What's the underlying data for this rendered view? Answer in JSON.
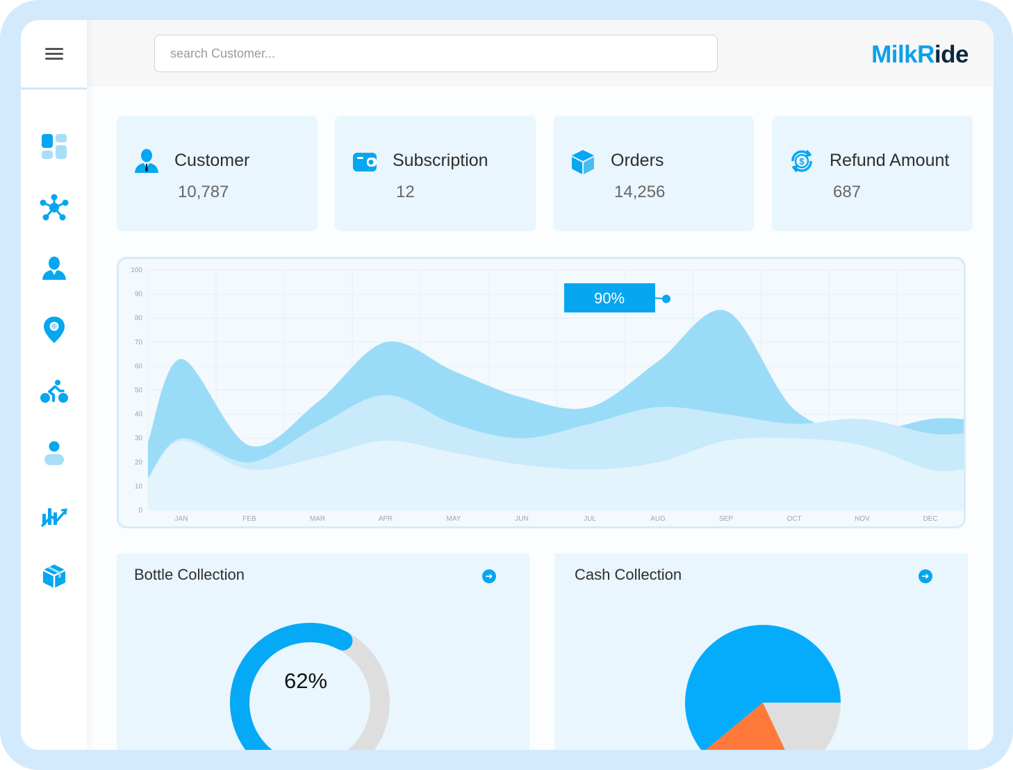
{
  "search": {
    "placeholder": "search Customer..."
  },
  "brand": {
    "part1": "MilkR",
    "part2": "ide",
    "color_primary": "#0aa0ec",
    "color_dark": "#0d2740"
  },
  "sidebar": {
    "items": [
      {
        "icon": "dashboard-icon"
      },
      {
        "icon": "network-icon"
      },
      {
        "icon": "user-icon"
      },
      {
        "icon": "location-pin-icon"
      },
      {
        "icon": "delivery-bike-icon"
      },
      {
        "icon": "person-icon"
      },
      {
        "icon": "analytics-icon"
      },
      {
        "icon": "package-icon"
      }
    ]
  },
  "stats": [
    {
      "label": "Customer",
      "value": "10,787",
      "icon": "customer-icon"
    },
    {
      "label": "Subscription",
      "value": "12",
      "icon": "wallet-icon"
    },
    {
      "label": "Orders",
      "value": "14,256",
      "icon": "box-icon"
    },
    {
      "label": "Refund Amount",
      "value": "687",
      "icon": "refund-dollar-icon"
    }
  ],
  "chart_data": {
    "type": "area",
    "categories": [
      "JAN",
      "FEB",
      "MAR",
      "APR",
      "MAY",
      "JUN",
      "JUL",
      "AUG",
      "SEP",
      "OCT",
      "NOV",
      "DEC"
    ],
    "series": [
      {
        "values": [
          63,
          27,
          45,
          70,
          58,
          47,
          43,
          62,
          83,
          42,
          33,
          38
        ]
      },
      {
        "values": [
          30,
          20,
          35,
          48,
          36,
          30,
          36,
          43,
          40,
          36,
          38,
          32
        ]
      },
      {
        "values": [
          29,
          17,
          22,
          29,
          24,
          19,
          17,
          20,
          29,
          30,
          27,
          17
        ]
      }
    ],
    "colors": [
      "#9adcf7",
      "#c8eafb",
      "#e3f4fd"
    ],
    "ylim": [
      0,
      100
    ],
    "yticks": [
      0,
      10,
      20,
      30,
      40,
      50,
      60,
      70,
      80,
      90,
      100
    ],
    "annotation": {
      "label": "90%",
      "category": "AUG",
      "value": 88
    },
    "grid": true
  },
  "bottle": {
    "title": "Bottle Collection",
    "percent_label": "62%",
    "fraction": 0.62,
    "color_fill": "#06a9f5",
    "color_track": "#dedede"
  },
  "cash": {
    "title": "Cash Collection",
    "slices": [
      {
        "fraction": 0.61,
        "color": "#06acfc"
      },
      {
        "fraction": 0.21,
        "color": "#ff7a3a"
      },
      {
        "fraction": 0.18,
        "color": "#dedede"
      }
    ]
  }
}
